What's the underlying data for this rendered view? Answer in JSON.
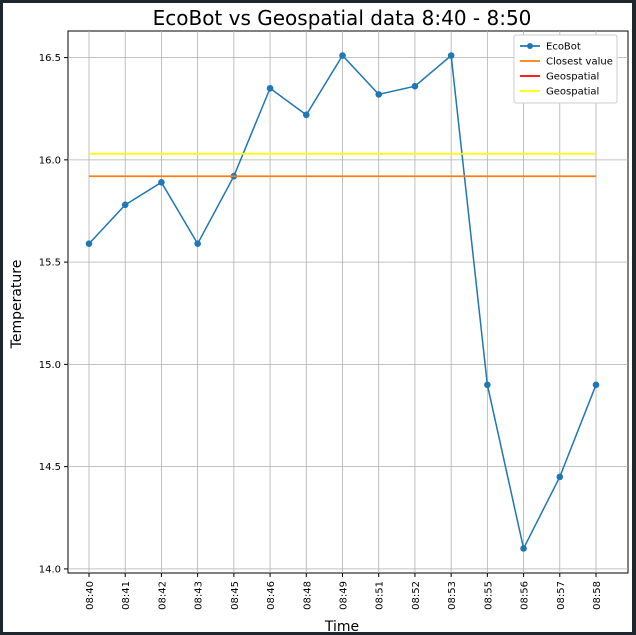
{
  "chart_data": {
    "type": "line",
    "title": "EcoBot vs Geospatial data 8:40 - 8:50",
    "xlabel": "Time",
    "ylabel": "Temperature",
    "categories": [
      "08:40",
      "08:41",
      "08:42",
      "08:43",
      "08:45",
      "08:46",
      "08:48",
      "08:49",
      "08:51",
      "08:52",
      "08:53",
      "08:55",
      "08:56",
      "08:57",
      "08:58"
    ],
    "ylim": [
      13.98,
      16.63
    ],
    "yticks": [
      "14.0",
      "14.5",
      "15.0",
      "15.5",
      "16.0",
      "16.5"
    ],
    "grid": true,
    "legend_position": "top-right",
    "series": [
      {
        "name": "EcoBot",
        "kind": "line-markers",
        "color": "#1f77b4",
        "values": [
          15.59,
          15.78,
          15.89,
          15.59,
          15.92,
          16.35,
          16.22,
          16.51,
          16.32,
          16.36,
          16.51,
          14.9,
          14.1,
          14.45,
          14.9
        ]
      },
      {
        "name": "Closest value",
        "kind": "hline",
        "color": "#ff7f0e",
        "value": 15.92
      },
      {
        "name": "Geospatial",
        "kind": "legend-only",
        "color": "#ff0000"
      },
      {
        "name": "Geospatial",
        "kind": "hline",
        "color": "#ffff00",
        "value": 16.03
      }
    ]
  }
}
